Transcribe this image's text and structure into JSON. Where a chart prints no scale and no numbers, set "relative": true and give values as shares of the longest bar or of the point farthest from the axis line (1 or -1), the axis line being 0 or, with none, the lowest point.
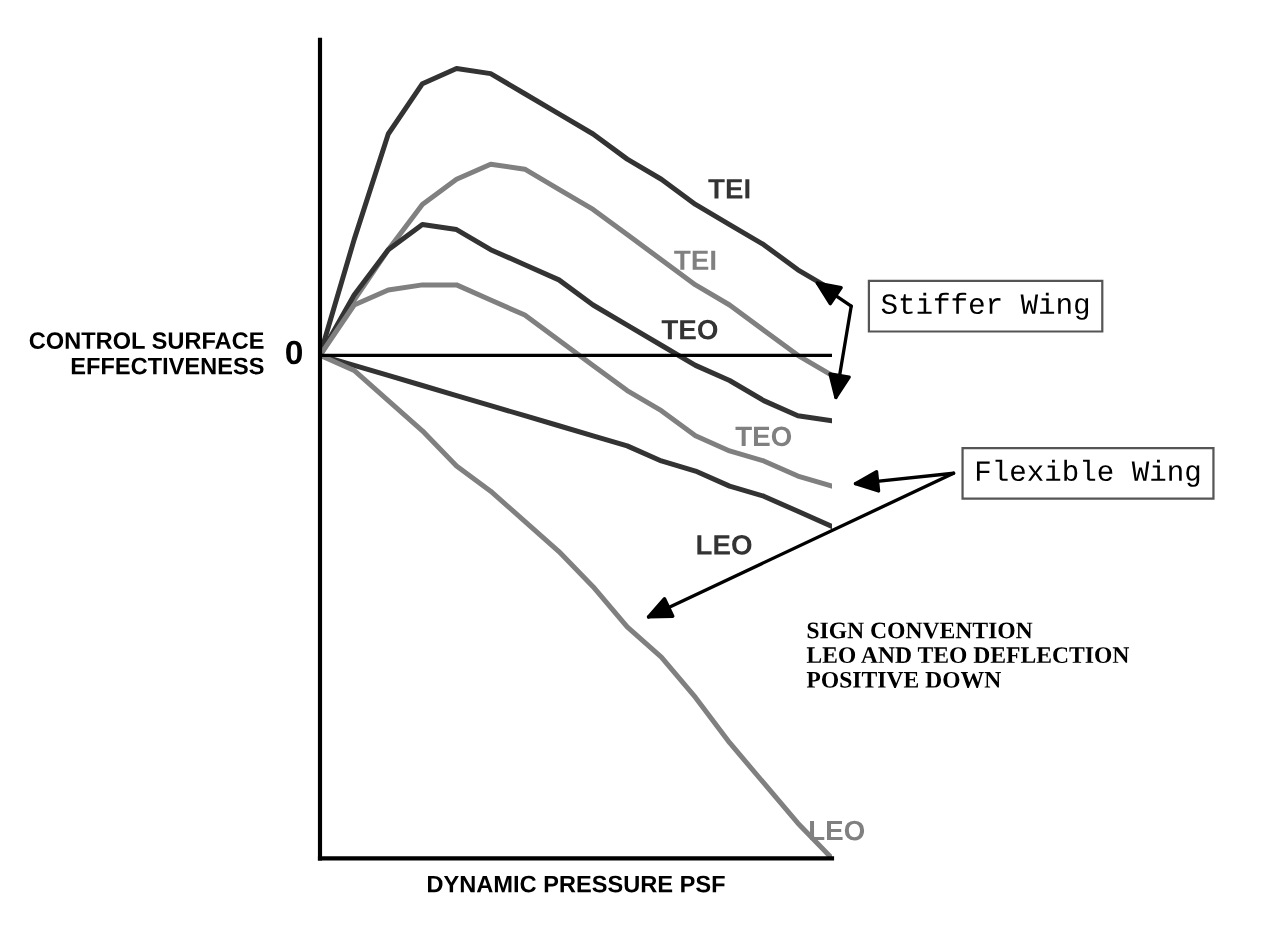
{
  "chart_data": {
    "type": "line",
    "relative": true,
    "xlabel": "DYNAMIC PRESSURE PSF",
    "ylabel": "CONTROL SURFACE\nEFFECTIVENESS",
    "categories": [
      null,
      null,
      null,
      null,
      null,
      null,
      null,
      null,
      null,
      null,
      null,
      null,
      null,
      null,
      null,
      null
    ],
    "series": [
      {
        "name": "TEI",
        "color": "#333333",
        "values": [
          0,
          0.23,
          0.44,
          0.54,
          0.57,
          0.56,
          0.52,
          0.48,
          0.44,
          0.39,
          0.35,
          0.3,
          0.26,
          0.22,
          0.17,
          0.13
        ]
      },
      {
        "name": "TEI",
        "color": "#808080",
        "values": [
          0,
          0.11,
          0.21,
          0.3,
          0.35,
          0.38,
          0.37,
          0.33,
          0.29,
          0.24,
          0.19,
          0.14,
          0.1,
          0.05,
          0.0,
          -0.04
        ]
      },
      {
        "name": "TEO",
        "color": "#333333",
        "values": [
          0,
          0.12,
          0.21,
          0.26,
          0.25,
          0.21,
          0.18,
          0.15,
          0.1,
          0.06,
          0.02,
          -0.02,
          -0.05,
          -0.09,
          -0.12,
          -0.13
        ]
      },
      {
        "name": "TEO",
        "color": "#808080",
        "values": [
          0,
          0.1,
          0.13,
          0.14,
          0.14,
          0.11,
          0.08,
          0.03,
          -0.02,
          -0.07,
          -0.11,
          -0.16,
          -0.19,
          -0.21,
          -0.24,
          -0.26
        ]
      },
      {
        "name": "LEO",
        "color": "#333333",
        "values": [
          0,
          -0.02,
          -0.04,
          -0.06,
          -0.08,
          -0.1,
          -0.12,
          -0.14,
          -0.16,
          -0.18,
          -0.21,
          -0.23,
          -0.26,
          -0.28,
          -0.31,
          -0.34
        ]
      },
      {
        "name": "LEO",
        "color": "#808080",
        "values": [
          0,
          -0.03,
          -0.09,
          -0.15,
          -0.22,
          -0.27,
          -0.33,
          -0.39,
          -0.46,
          -0.54,
          -0.6,
          -0.68,
          -0.77,
          -0.85,
          -0.93,
          -1.0
        ]
      }
    ],
    "ref_lines": [
      {
        "axis": "y",
        "value": 0,
        "label": "0",
        "color": "#000000"
      }
    ],
    "annotations": [
      "Stiffer Wing",
      "Flexible Wing",
      "SIGN CONVENTION\nLEO AND TEO DEFLECTION\nPOSITIVE DOWN"
    ]
  }
}
